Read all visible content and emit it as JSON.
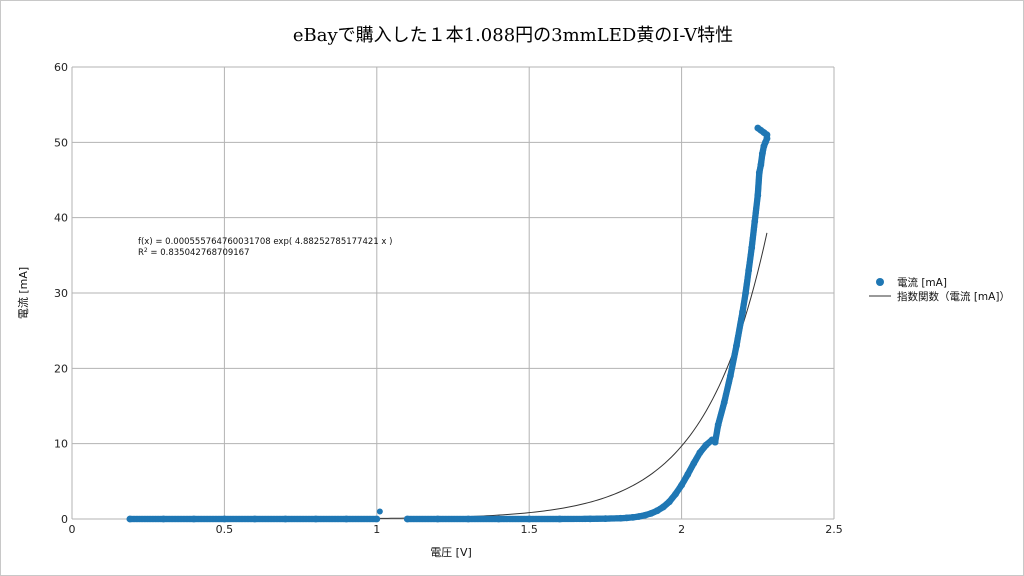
{
  "chart_data": {
    "type": "scatter",
    "title": "eBayで購入した１本1.088円の3mmLED黄のI-V特性",
    "xlabel": "電圧 [V]",
    "ylabel": "電流 [mA]",
    "xlim": [
      0,
      2.5
    ],
    "ylim": [
      0,
      60
    ],
    "x_ticks": [
      "0",
      "0.5",
      "1",
      "1.5",
      "2",
      "2.5"
    ],
    "y_ticks": [
      "0",
      "10",
      "20",
      "30",
      "40",
      "50",
      "60"
    ],
    "x_tick_values": [
      0,
      0.5,
      1,
      1.5,
      2,
      2.5
    ],
    "y_tick_values": [
      0,
      10,
      20,
      30,
      40,
      50,
      60
    ],
    "grid": true,
    "legend_position": "right",
    "series": [
      {
        "name": "電流 [mA]",
        "kind": "scatter",
        "color": "#1f77b4",
        "x": [
          0.19,
          0.3,
          0.4,
          0.5,
          0.6,
          0.7,
          0.8,
          0.9,
          1.0,
          1.01,
          1.1,
          1.2,
          1.3,
          1.4,
          1.5,
          1.6,
          1.7,
          1.75,
          1.8,
          1.82,
          1.84,
          1.86,
          1.88,
          1.9,
          1.92,
          1.94,
          1.96,
          1.98,
          2.0,
          2.02,
          2.04,
          2.06,
          2.08,
          2.1,
          2.11,
          2.12,
          2.14,
          2.16,
          2.18,
          2.2,
          2.21,
          2.22,
          2.23,
          2.24,
          2.25,
          2.255,
          2.26,
          2.265,
          2.27,
          2.275,
          2.28,
          2.28,
          2.27,
          2.26,
          2.25
        ],
        "y": [
          0,
          0,
          0,
          0,
          0,
          0,
          0,
          0,
          0,
          1,
          0,
          0,
          0,
          0,
          0,
          0,
          0.02,
          0.05,
          0.1,
          0.15,
          0.22,
          0.33,
          0.5,
          0.75,
          1.1,
          1.6,
          2.3,
          3.3,
          4.5,
          5.9,
          7.4,
          8.8,
          9.8,
          10.5,
          10.2,
          12.5,
          15.5,
          19,
          23,
          27.5,
          30,
          33,
          36,
          39.5,
          43,
          46,
          47,
          48.5,
          49.5,
          50,
          50.5,
          51,
          51.3,
          51.6,
          51.9
        ]
      },
      {
        "name": "指数関数（電流 [mA]）",
        "kind": "line",
        "color": "#333333",
        "function": "exp",
        "a": 0.000555764760031708,
        "b": 4.88252785177421,
        "x_range": [
          0.19,
          2.28
        ]
      }
    ],
    "annotations": {
      "equation": "f(x) = 0.000555764760031708 exp( 4.88252785177421 x )",
      "r_squared_prefix": "R",
      "r_squared_sup": "2",
      "r_squared_value": " = 0.835042768709167"
    }
  }
}
